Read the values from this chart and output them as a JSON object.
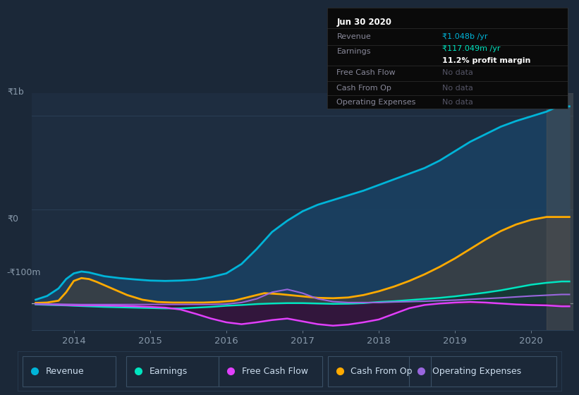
{
  "bg_color": "#1b2838",
  "plot_bg_color": "#1e2d40",
  "grid_color": "#2a3f55",
  "title_box": {
    "date": "Jun 30 2020",
    "revenue_val": "₹1.048b /yr",
    "earnings_val": "₹117.049m /yr",
    "profit_margin": "11.2% profit margin",
    "fcf": "No data",
    "cash_from_op": "No data",
    "op_exp": "No data"
  },
  "ylabel_top": "₹1b",
  "ylabel_zero": "₹0",
  "ylabel_bottom": "-₹100m",
  "x_ticks": [
    2014,
    2015,
    2016,
    2017,
    2018,
    2019,
    2020
  ],
  "ylim_min": -140000000,
  "ylim_max": 1120000000,
  "revenue_x": [
    2013.5,
    2013.65,
    2013.8,
    2013.9,
    2014.0,
    2014.1,
    2014.2,
    2014.3,
    2014.4,
    2014.6,
    2014.8,
    2015.0,
    2015.2,
    2015.4,
    2015.6,
    2015.8,
    2016.0,
    2016.2,
    2016.4,
    2016.6,
    2016.8,
    2017.0,
    2017.2,
    2017.4,
    2017.6,
    2017.8,
    2018.0,
    2018.2,
    2018.4,
    2018.6,
    2018.8,
    2019.0,
    2019.2,
    2019.4,
    2019.6,
    2019.8,
    2020.0,
    2020.2,
    2020.35,
    2020.5
  ],
  "revenue_y": [
    20000000,
    40000000,
    80000000,
    130000000,
    160000000,
    170000000,
    165000000,
    155000000,
    145000000,
    135000000,
    128000000,
    122000000,
    120000000,
    122000000,
    127000000,
    140000000,
    160000000,
    210000000,
    290000000,
    380000000,
    440000000,
    490000000,
    525000000,
    550000000,
    575000000,
    600000000,
    630000000,
    660000000,
    690000000,
    720000000,
    760000000,
    810000000,
    860000000,
    900000000,
    940000000,
    970000000,
    995000000,
    1020000000,
    1048000000,
    1048000000
  ],
  "earnings_x": [
    2013.5,
    2013.7,
    2013.9,
    2014.0,
    2014.2,
    2014.4,
    2014.6,
    2014.8,
    2015.0,
    2015.2,
    2015.4,
    2015.6,
    2015.8,
    2016.0,
    2016.2,
    2016.4,
    2016.6,
    2016.8,
    2017.0,
    2017.2,
    2017.4,
    2017.6,
    2017.8,
    2018.0,
    2018.2,
    2018.4,
    2018.6,
    2018.8,
    2019.0,
    2019.2,
    2019.4,
    2019.6,
    2019.8,
    2020.0,
    2020.2,
    2020.4,
    2020.5
  ],
  "earnings_y": [
    -5000000,
    -8000000,
    -10000000,
    -12000000,
    -15000000,
    -18000000,
    -20000000,
    -22000000,
    -24000000,
    -26000000,
    -26000000,
    -22000000,
    -18000000,
    -12000000,
    -8000000,
    -3000000,
    0,
    2000000,
    2000000,
    0,
    -2000000,
    -1000000,
    2000000,
    8000000,
    12000000,
    18000000,
    24000000,
    30000000,
    38000000,
    48000000,
    58000000,
    70000000,
    85000000,
    100000000,
    110000000,
    117049000,
    117049000
  ],
  "fcf_x": [
    2013.5,
    2013.7,
    2013.9,
    2014.1,
    2014.3,
    2014.6,
    2014.8,
    2015.0,
    2015.2,
    2015.4,
    2015.6,
    2015.8,
    2016.0,
    2016.2,
    2016.4,
    2016.6,
    2016.8,
    2017.0,
    2017.2,
    2017.4,
    2017.6,
    2017.8,
    2018.0,
    2018.2,
    2018.4,
    2018.6,
    2018.8,
    2019.0,
    2019.2,
    2019.4,
    2019.6,
    2019.8,
    2020.0,
    2020.2,
    2020.4,
    2020.5
  ],
  "fcf_y": [
    -3000000,
    -5000000,
    -8000000,
    -10000000,
    -10000000,
    -12000000,
    -15000000,
    -18000000,
    -22000000,
    -32000000,
    -55000000,
    -80000000,
    -100000000,
    -110000000,
    -100000000,
    -88000000,
    -80000000,
    -95000000,
    -110000000,
    -118000000,
    -112000000,
    -100000000,
    -85000000,
    -55000000,
    -25000000,
    -8000000,
    0,
    5000000,
    8000000,
    5000000,
    0,
    -5000000,
    -8000000,
    -10000000,
    -15000000,
    -15000000
  ],
  "cop_x": [
    2013.5,
    2013.65,
    2013.8,
    2013.9,
    2014.0,
    2014.1,
    2014.2,
    2014.3,
    2014.5,
    2014.7,
    2014.9,
    2015.1,
    2015.3,
    2015.5,
    2015.7,
    2015.9,
    2016.1,
    2016.3,
    2016.5,
    2016.7,
    2016.9,
    2017.0,
    2017.2,
    2017.4,
    2017.6,
    2017.8,
    2018.0,
    2018.2,
    2018.4,
    2018.6,
    2018.8,
    2019.0,
    2019.2,
    2019.4,
    2019.6,
    2019.8,
    2020.0,
    2020.2,
    2020.35,
    2020.5
  ],
  "cop_y": [
    3000000,
    5000000,
    15000000,
    60000000,
    120000000,
    135000000,
    130000000,
    115000000,
    80000000,
    45000000,
    20000000,
    8000000,
    5000000,
    5000000,
    5000000,
    8000000,
    15000000,
    35000000,
    55000000,
    50000000,
    42000000,
    38000000,
    30000000,
    28000000,
    32000000,
    45000000,
    65000000,
    90000000,
    120000000,
    155000000,
    195000000,
    240000000,
    290000000,
    340000000,
    385000000,
    420000000,
    445000000,
    460000000,
    460000000,
    460000000
  ],
  "opex_x": [
    2013.5,
    2013.7,
    2013.9,
    2014.1,
    2014.3,
    2014.6,
    2014.8,
    2015.0,
    2015.2,
    2015.4,
    2015.6,
    2015.8,
    2016.0,
    2016.2,
    2016.4,
    2016.6,
    2016.8,
    2017.0,
    2017.2,
    2017.4,
    2017.6,
    2017.8,
    2018.0,
    2018.2,
    2018.4,
    2018.6,
    2018.8,
    2019.0,
    2019.2,
    2019.4,
    2019.6,
    2019.8,
    2020.0,
    2020.2,
    2020.4,
    2020.5
  ],
  "opex_y": [
    -2000000,
    -3000000,
    -4000000,
    -5000000,
    -5000000,
    -5000000,
    -5000000,
    -5000000,
    -5000000,
    -5000000,
    -5000000,
    -5000000,
    -3000000,
    5000000,
    25000000,
    60000000,
    75000000,
    55000000,
    25000000,
    10000000,
    5000000,
    5000000,
    5000000,
    8000000,
    10000000,
    12000000,
    15000000,
    18000000,
    22000000,
    26000000,
    30000000,
    35000000,
    40000000,
    44000000,
    48000000,
    48000000
  ],
  "legend_items": [
    {
      "label": "Revenue",
      "color": "#00b4d8"
    },
    {
      "label": "Earnings",
      "color": "#00e5c0"
    },
    {
      "label": "Free Cash Flow",
      "color": "#e040fb"
    },
    {
      "label": "Cash From Op",
      "color": "#ffaa00"
    },
    {
      "label": "Operating Expenses",
      "color": "#9966dd"
    }
  ]
}
